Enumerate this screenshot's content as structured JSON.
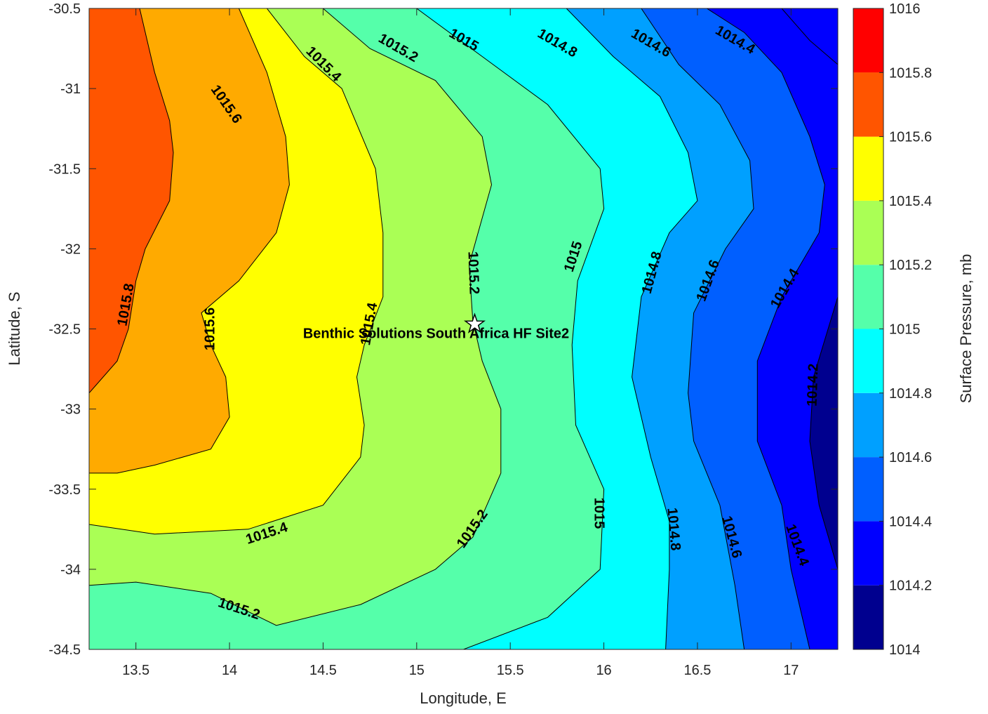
{
  "chart_data": {
    "type": "contour",
    "xlabel": "Longitude, E",
    "ylabel": "Latitude, S",
    "colorbar_label": "Surface Pressure, mb",
    "xlim": [
      13.25,
      17.25
    ],
    "ylim": [
      -34.5,
      -30.5
    ],
    "xticks": [
      "13.5",
      "14",
      "14.5",
      "15",
      "15.5",
      "16",
      "16.5",
      "17"
    ],
    "yticks": [
      "-30.5",
      "-31",
      "-31.5",
      "-32",
      "-32.5",
      "-33",
      "-33.5",
      "-34",
      "-34.5"
    ],
    "colorbar_ticks": [
      "1016",
      "1015.8",
      "1015.6",
      "1015.4",
      "1015.2",
      "1015",
      "1014.8",
      "1014.6",
      "1014.4",
      "1014.2",
      "1014"
    ],
    "colorbar_range": [
      1014,
      1016
    ],
    "levels": [
      1014,
      1014.2,
      1014.4,
      1014.6,
      1014.8,
      1015,
      1015.2,
      1015.4,
      1015.6,
      1015.8,
      1016
    ],
    "level_colors": [
      "#00008f",
      "#0000ff",
      "#005fff",
      "#00a0ff",
      "#00ffff",
      "#55ffaa",
      "#aaff55",
      "#ffff00",
      "#ffaa00",
      "#ff5500",
      "#ff0000"
    ],
    "site": {
      "name": "Benthic Solutions South Africa HF Site2",
      "lon": 15.31,
      "lat": -32.47
    },
    "isolines": [
      {
        "level": 1015.8,
        "points": [
          [
            13.25,
            -32.9
          ],
          [
            13.4,
            -32.7
          ],
          [
            13.46,
            -32.5
          ],
          [
            13.5,
            -32.2
          ],
          [
            13.55,
            -32.0
          ],
          [
            13.68,
            -31.7
          ],
          [
            13.7,
            -31.4
          ],
          [
            13.68,
            -31.2
          ],
          [
            13.6,
            -30.9
          ],
          [
            13.52,
            -30.5
          ]
        ]
      },
      {
        "level": 1015.6,
        "points": [
          [
            13.25,
            -33.4
          ],
          [
            13.4,
            -33.4
          ],
          [
            13.6,
            -33.35
          ],
          [
            13.9,
            -33.25
          ],
          [
            14.0,
            -33.05
          ],
          [
            13.98,
            -32.8
          ],
          [
            13.9,
            -32.6
          ],
          [
            13.85,
            -32.4
          ],
          [
            14.05,
            -32.2
          ],
          [
            14.25,
            -31.9
          ],
          [
            14.32,
            -31.6
          ],
          [
            14.3,
            -31.3
          ],
          [
            14.2,
            -30.9
          ],
          [
            14.05,
            -30.5
          ]
        ]
      },
      {
        "level": 1015.4,
        "points": [
          [
            13.25,
            -33.72
          ],
          [
            13.6,
            -33.78
          ],
          [
            14.1,
            -33.75
          ],
          [
            14.5,
            -33.6
          ],
          [
            14.7,
            -33.3
          ],
          [
            14.72,
            -33.1
          ],
          [
            14.68,
            -32.8
          ],
          [
            14.72,
            -32.6
          ],
          [
            14.82,
            -32.3
          ],
          [
            14.82,
            -31.9
          ],
          [
            14.78,
            -31.5
          ],
          [
            14.6,
            -31.0
          ],
          [
            14.4,
            -30.8
          ],
          [
            14.2,
            -30.5
          ]
        ]
      },
      {
        "level": 1015.2,
        "points": [
          [
            13.25,
            -34.1
          ],
          [
            13.5,
            -34.08
          ],
          [
            13.9,
            -34.15
          ],
          [
            14.25,
            -34.35
          ],
          [
            14.7,
            -34.22
          ],
          [
            15.1,
            -34.0
          ],
          [
            15.3,
            -33.8
          ],
          [
            15.45,
            -33.4
          ],
          [
            15.45,
            -33.0
          ],
          [
            15.35,
            -32.7
          ],
          [
            15.3,
            -32.45
          ],
          [
            15.28,
            -32.1
          ],
          [
            15.4,
            -31.6
          ],
          [
            15.35,
            -31.3
          ],
          [
            15.1,
            -30.95
          ],
          [
            14.75,
            -30.75
          ],
          [
            14.5,
            -30.5
          ]
        ]
      },
      {
        "level": 1015,
        "points": [
          [
            15.25,
            -34.5
          ],
          [
            15.7,
            -34.3
          ],
          [
            15.98,
            -34.0
          ],
          [
            16.0,
            -33.5
          ],
          [
            15.85,
            -33.1
          ],
          [
            15.83,
            -32.6
          ],
          [
            15.86,
            -32.2
          ],
          [
            16.0,
            -31.75
          ],
          [
            15.98,
            -31.5
          ],
          [
            15.7,
            -31.1
          ],
          [
            15.35,
            -30.8
          ],
          [
            15.0,
            -30.5
          ]
        ]
      },
      {
        "level": 1014.8,
        "points": [
          [
            16.33,
            -34.5
          ],
          [
            16.35,
            -34.0
          ],
          [
            16.35,
            -33.7
          ],
          [
            16.25,
            -33.3
          ],
          [
            16.15,
            -32.8
          ],
          [
            16.2,
            -32.3
          ],
          [
            16.35,
            -31.9
          ],
          [
            16.5,
            -31.7
          ],
          [
            16.45,
            -31.4
          ],
          [
            16.3,
            -31.05
          ],
          [
            16.05,
            -30.8
          ],
          [
            15.8,
            -30.5
          ]
        ]
      },
      {
        "level": 1014.6,
        "points": [
          [
            16.75,
            -34.5
          ],
          [
            16.7,
            -34.1
          ],
          [
            16.62,
            -33.6
          ],
          [
            16.48,
            -33.2
          ],
          [
            16.45,
            -32.9
          ],
          [
            16.48,
            -32.4
          ],
          [
            16.65,
            -32.0
          ],
          [
            16.8,
            -31.75
          ],
          [
            16.78,
            -31.45
          ],
          [
            16.62,
            -31.1
          ],
          [
            16.4,
            -30.85
          ],
          [
            16.2,
            -30.5
          ]
        ]
      },
      {
        "level": 1014.4,
        "points": [
          [
            17.1,
            -34.5
          ],
          [
            17.0,
            -34.0
          ],
          [
            16.95,
            -33.6
          ],
          [
            16.82,
            -33.2
          ],
          [
            16.82,
            -32.7
          ],
          [
            16.95,
            -32.3
          ],
          [
            17.15,
            -31.9
          ],
          [
            17.18,
            -31.6
          ],
          [
            17.1,
            -31.3
          ],
          [
            16.95,
            -30.9
          ],
          [
            16.75,
            -30.65
          ],
          [
            16.55,
            -30.5
          ]
        ]
      },
      {
        "level": 1014.2,
        "points": [
          [
            17.25,
            -34.0
          ],
          [
            17.15,
            -33.6
          ],
          [
            17.1,
            -33.2
          ],
          [
            17.12,
            -32.8
          ],
          [
            17.25,
            -32.3
          ]
        ]
      },
      {
        "level": 1014.2,
        "points": [
          [
            16.95,
            -30.5
          ],
          [
            17.1,
            -30.7
          ],
          [
            17.25,
            -30.85
          ]
        ]
      }
    ],
    "contour_labels": [
      {
        "text": "1015.8",
        "lon": 13.45,
        "lat": -32.35,
        "angle": -80
      },
      {
        "text": "1015.6",
        "lon": 13.9,
        "lat": -32.5,
        "angle": -90
      },
      {
        "text": "1015.4",
        "lon": 14.75,
        "lat": -32.47,
        "angle": -80
      },
      {
        "text": "1015.2",
        "lon": 15.3,
        "lat": -32.15,
        "angle": 88
      },
      {
        "text": "1015",
        "lon": 15.84,
        "lat": -32.05,
        "angle": -72
      },
      {
        "text": "1014.8",
        "lon": 16.26,
        "lat": -32.15,
        "angle": -75
      },
      {
        "text": "1014.6",
        "lon": 16.56,
        "lat": -32.2,
        "angle": -70
      },
      {
        "text": "1014.4",
        "lon": 16.97,
        "lat": -32.25,
        "angle": -60
      },
      {
        "text": "1014.2",
        "lon": 17.12,
        "lat": -32.85,
        "angle": -88
      },
      {
        "text": "1015.4",
        "lon": 14.2,
        "lat": -33.78,
        "angle": -18
      },
      {
        "text": "1015.2",
        "lon": 15.3,
        "lat": -33.75,
        "angle": -55
      },
      {
        "text": "1015",
        "lon": 15.97,
        "lat": -33.65,
        "angle": 90
      },
      {
        "text": "1014.8",
        "lon": 16.37,
        "lat": -33.75,
        "angle": 85
      },
      {
        "text": "1014.6",
        "lon": 16.68,
        "lat": -33.8,
        "angle": 75
      },
      {
        "text": "1014.4",
        "lon": 17.03,
        "lat": -33.85,
        "angle": 70
      },
      {
        "text": "1015.2",
        "lon": 14.05,
        "lat": -34.25,
        "angle": 18
      },
      {
        "text": "1015.6",
        "lon": 13.98,
        "lat": -31.1,
        "angle": 55
      },
      {
        "text": "1015.4",
        "lon": 14.5,
        "lat": -30.85,
        "angle": 45
      },
      {
        "text": "1015.2",
        "lon": 14.9,
        "lat": -30.75,
        "angle": 30
      },
      {
        "text": "1015",
        "lon": 15.25,
        "lat": -30.7,
        "angle": 30
      },
      {
        "text": "1014.8",
        "lon": 15.75,
        "lat": -30.72,
        "angle": 30
      },
      {
        "text": "1014.6",
        "lon": 16.25,
        "lat": -30.72,
        "angle": 30
      },
      {
        "text": "1014.4",
        "lon": 16.7,
        "lat": -30.7,
        "angle": 30
      }
    ]
  }
}
